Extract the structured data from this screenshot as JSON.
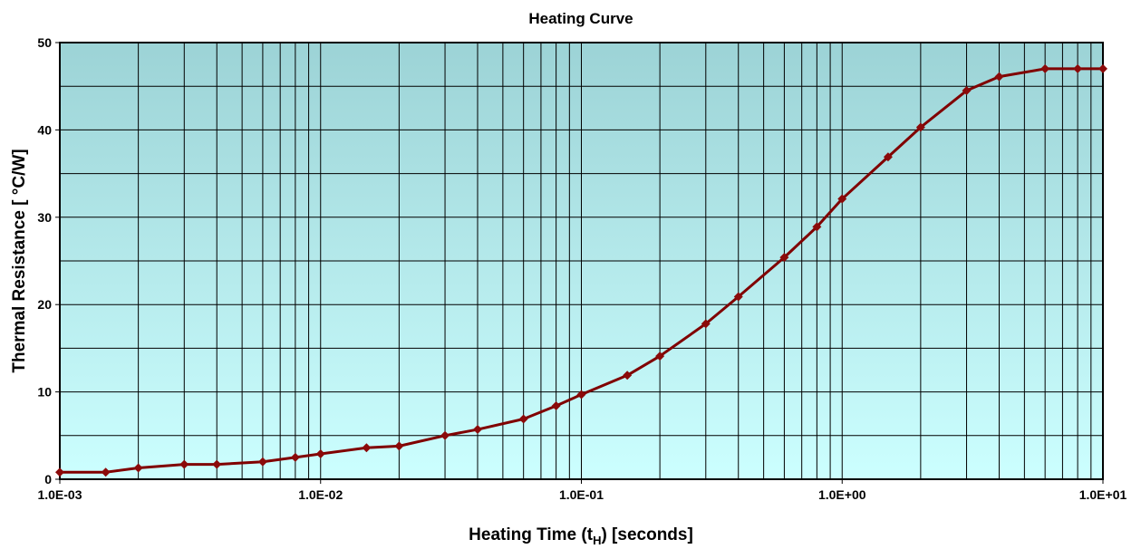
{
  "chart_data": {
    "type": "line",
    "title": "Heating Curve",
    "x_label": {
      "before": "Heating Time (t",
      "sub": "H",
      "after": ") [seconds]"
    },
    "y_label": "Thermal Resistance [ °C/W]",
    "x_scale": "log",
    "x": [
      0.001,
      0.0015,
      0.002,
      0.003,
      0.004,
      0.006,
      0.008,
      0.01,
      0.015,
      0.02,
      0.03,
      0.04,
      0.06,
      0.08,
      0.1,
      0.15,
      0.2,
      0.3,
      0.4,
      0.6,
      0.8,
      1,
      1.5,
      2,
      3,
      4,
      6,
      8,
      10
    ],
    "series": [
      {
        "name": "Heating Curve",
        "color": "#800000",
        "marker_color": "#8b0a0a",
        "values": [
          0.8,
          0.8,
          1.3,
          1.7,
          1.7,
          2.0,
          2.5,
          2.9,
          3.6,
          3.8,
          5.0,
          5.7,
          6.9,
          8.4,
          9.7,
          11.9,
          14.1,
          17.8,
          20.9,
          25.4,
          28.9,
          32.1,
          36.9,
          40.3,
          44.5,
          46.1,
          47.0,
          47.0,
          47.0
        ]
      }
    ],
    "xlim": [
      0.001,
      10
    ],
    "xticks": [
      {
        "value": 0.001,
        "label": "1.0E-03"
      },
      {
        "value": 0.01,
        "label": "1.0E-02"
      },
      {
        "value": 0.1,
        "label": "1.0E-01"
      },
      {
        "value": 1,
        "label": "1.0E+00"
      },
      {
        "value": 10,
        "label": "1.0E+01"
      }
    ],
    "x_minor_grid": [
      0.002,
      0.003,
      0.004,
      0.005,
      0.006,
      0.007,
      0.008,
      0.009,
      0.02,
      0.03,
      0.04,
      0.05,
      0.06,
      0.07,
      0.08,
      0.09,
      0.2,
      0.3,
      0.4,
      0.5,
      0.6,
      0.7,
      0.8,
      0.9,
      2,
      3,
      4,
      5,
      6,
      7,
      8,
      9
    ],
    "ylim": [
      0,
      50
    ],
    "yticks": [
      0,
      10,
      20,
      30,
      40,
      50
    ],
    "y_minor_grid": [
      5,
      15,
      25,
      35,
      45
    ],
    "grid": true
  }
}
